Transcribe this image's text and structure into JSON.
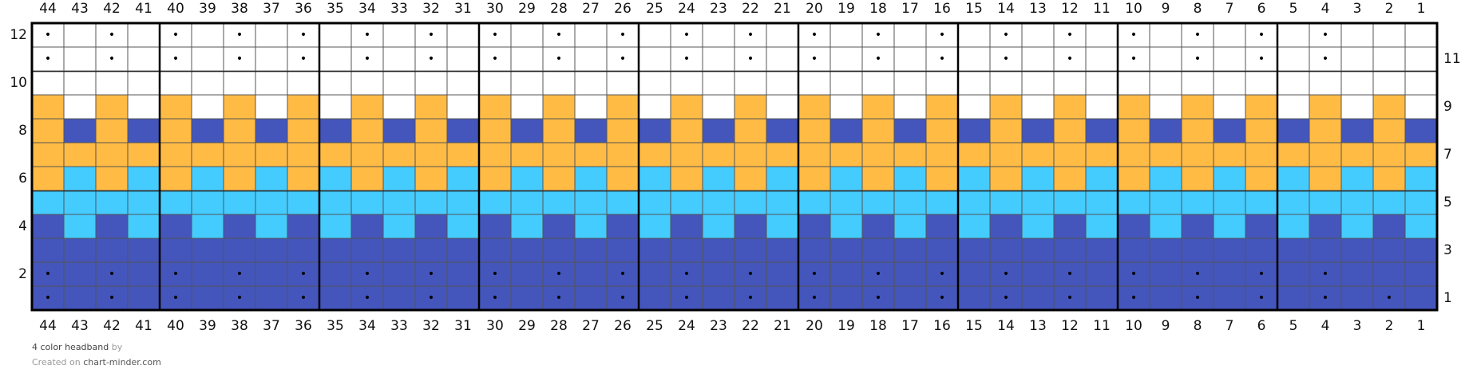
{
  "columns": [
    44,
    43,
    42,
    41,
    40,
    39,
    38,
    37,
    36,
    35,
    34,
    33,
    32,
    31,
    30,
    29,
    28,
    27,
    26,
    25,
    24,
    23,
    22,
    21,
    20,
    19,
    18,
    17,
    16,
    15,
    14,
    13,
    12,
    11,
    10,
    9,
    8,
    7,
    6,
    5,
    4,
    3,
    2,
    1
  ],
  "rows": [
    {
      "number": 1,
      "cells": [
        "#45b",
        "#45b",
        "#45b",
        "#45b",
        "#45b",
        "#45b",
        "#45b",
        "#45b",
        "#45b",
        "#45b",
        "#45b",
        "#45b",
        "#45b",
        "#45b",
        "#45b",
        "#45b",
        "#45b",
        "#45b",
        "#45b",
        "#45b",
        "#45b",
        "#45b",
        "#45b",
        "#45b",
        "#45b",
        "#45b",
        "#45b",
        "#45b",
        "#45b",
        "#45b",
        "#45b",
        "#45b",
        "#45b",
        "#45b",
        "#45b",
        "#45b",
        "#45b",
        "#45b",
        "#45b",
        "#45b",
        "#45b",
        "#45b",
        "#45b",
        "#45b"
      ],
      "marks": [
        "•",
        null,
        "•",
        null,
        "•",
        null,
        "•",
        null,
        "•",
        null,
        "•",
        null,
        "•",
        null,
        "•",
        null,
        "•",
        null,
        "•",
        null,
        "•",
        null,
        "•",
        null,
        "•",
        null,
        "•",
        null,
        "•",
        null,
        "•",
        null,
        "•",
        null,
        "•",
        null,
        "•",
        null,
        "•",
        null,
        "•",
        null,
        "•",
        null
      ]
    },
    {
      "number": 2,
      "cells": [
        "#45b",
        "#45b",
        "#45b",
        "#45b",
        "#45b",
        "#45b",
        "#45b",
        "#45b",
        "#45b",
        "#45b",
        "#45b",
        "#45b",
        "#45b",
        "#45b",
        "#45b",
        "#45b",
        "#45b",
        "#45b",
        "#45b",
        "#45b",
        "#45b",
        "#45b",
        "#45b",
        "#45b",
        "#45b",
        "#45b",
        "#45b",
        "#45b",
        "#45b",
        "#45b",
        "#45b",
        "#45b",
        "#45b",
        "#45b",
        "#45b",
        "#45b",
        "#45b",
        "#45b",
        "#45b",
        "#45b",
        "#45b",
        "#45b",
        "#45b",
        "#45b"
      ],
      "marks": [
        "•",
        null,
        "•",
        null,
        "•",
        null,
        "•",
        null,
        "•",
        null,
        "•",
        null,
        "•",
        null,
        "•",
        null,
        "•",
        null,
        "•",
        null,
        "•",
        null,
        "•",
        null,
        "•",
        null,
        "•",
        null,
        "•",
        null,
        "•",
        null,
        "•",
        null,
        "•",
        null,
        "•",
        null,
        "•",
        null,
        "•",
        null
      ]
    },
    {
      "number": 3,
      "cells": [
        "#45b",
        "#45b",
        "#45b",
        "#45b",
        "#45b",
        "#45b",
        "#45b",
        "#45b",
        "#45b",
        "#45b",
        "#45b",
        "#45b",
        "#45b",
        "#45b",
        "#45b",
        "#45b",
        "#45b",
        "#45b",
        "#45b",
        "#45b",
        "#45b",
        "#45b",
        "#45b",
        "#45b",
        "#45b",
        "#45b",
        "#45b",
        "#45b",
        "#45b",
        "#45b",
        "#45b",
        "#45b",
        "#45b",
        "#45b",
        "#45b",
        "#45b",
        "#45b",
        "#45b",
        "#45b",
        "#45b",
        "#45b",
        "#45b",
        "#45b",
        "#45b"
      ]
    },
    {
      "number": 4,
      "cells": [
        "#45b",
        "#4cf",
        "#45b",
        "#4cf",
        "#45b",
        "#4cf",
        "#45b",
        "#4cf",
        "#45b",
        "#4cf",
        "#45b",
        "#4cf",
        "#45b",
        "#4cf",
        "#45b",
        "#4cf",
        "#45b",
        "#4cf",
        "#45b",
        "#4cf",
        "#45b",
        "#4cf",
        "#45b",
        "#4cf",
        "#45b",
        "#4cf",
        "#45b",
        "#4cf",
        "#45b",
        "#4cf",
        "#45b",
        "#4cf",
        "#45b",
        "#4cf",
        "#45b",
        "#4cf",
        "#45b",
        "#4cf",
        "#45b",
        "#4cf",
        "#45b",
        "#4cf",
        "#45b",
        "#4cf"
      ]
    },
    {
      "number": 5,
      "cells": [
        "#4cf",
        "#4cf",
        "#4cf",
        "#4cf",
        "#4cf",
        "#4cf",
        "#4cf",
        "#4cf",
        "#4cf",
        "#4cf",
        "#4cf",
        "#4cf",
        "#4cf",
        "#4cf",
        "#4cf",
        "#4cf",
        "#4cf",
        "#4cf",
        "#4cf",
        "#4cf",
        "#4cf",
        "#4cf",
        "#4cf",
        "#4cf",
        "#4cf",
        "#4cf",
        "#4cf",
        "#4cf",
        "#4cf",
        "#4cf",
        "#4cf",
        "#4cf",
        "#4cf",
        "#4cf",
        "#4cf",
        "#4cf",
        "#4cf",
        "#4cf",
        "#4cf",
        "#4cf",
        "#4cf",
        "#4cf",
        "#4cf",
        "#4cf"
      ]
    },
    {
      "number": 6,
      "cells": [
        "#fb4",
        "#4cf",
        "#fb4",
        "#4cf",
        "#fb4",
        "#4cf",
        "#fb4",
        "#4cf",
        "#fb4",
        "#4cf",
        "#fb4",
        "#4cf",
        "#fb4",
        "#4cf",
        "#fb4",
        "#4cf",
        "#fb4",
        "#4cf",
        "#fb4",
        "#4cf",
        "#fb4",
        "#4cf",
        "#fb4",
        "#4cf",
        "#fb4",
        "#4cf",
        "#fb4",
        "#4cf",
        "#fb4",
        "#4cf",
        "#fb4",
        "#4cf",
        "#fb4",
        "#4cf",
        "#fb4",
        "#4cf",
        "#fb4",
        "#4cf",
        "#fb4",
        "#4cf",
        "#fb4",
        "#4cf",
        "#fb4",
        "#4cf"
      ]
    },
    {
      "number": 7,
      "cells": [
        "#fb4",
        "#fb4",
        "#fb4",
        "#fb4",
        "#fb4",
        "#fb4",
        "#fb4",
        "#fb4",
        "#fb4",
        "#fb4",
        "#fb4",
        "#fb4",
        "#fb4",
        "#fb4",
        "#fb4",
        "#fb4",
        "#fb4",
        "#fb4",
        "#fb4",
        "#fb4",
        "#fb4",
        "#fb4",
        "#fb4",
        "#fb4",
        "#fb4",
        "#fb4",
        "#fb4",
        "#fb4",
        "#fb4",
        "#fb4",
        "#fb4",
        "#fb4",
        "#fb4",
        "#fb4",
        "#fb4",
        "#fb4",
        "#fb4",
        "#fb4",
        "#fb4",
        "#fb4",
        "#fb4",
        "#fb4",
        "#fb4",
        "#fb4"
      ]
    },
    {
      "number": 8,
      "cells": [
        "#fb4",
        "#45b",
        "#fb4",
        "#45b",
        "#fb4",
        "#45b",
        "#fb4",
        "#45b",
        "#fb4",
        "#45b",
        "#fb4",
        "#45b",
        "#fb4",
        "#45b",
        "#fb4",
        "#45b",
        "#fb4",
        "#45b",
        "#fb4",
        "#45b",
        "#fb4",
        "#45b",
        "#fb4",
        "#45b",
        "#fb4",
        "#45b",
        "#fb4",
        "#45b",
        "#fb4",
        "#45b",
        "#fb4",
        "#45b",
        "#fb4",
        "#45b",
        "#fb4",
        "#45b",
        "#fb4",
        "#45b",
        "#fb4",
        "#45b",
        "#fb4",
        "#45b",
        "#fb4",
        "#45b"
      ]
    },
    {
      "number": 9,
      "cells": [
        "#fb4",
        "#fff",
        "#fb4",
        "#fff",
        "#fb4",
        "#fff",
        "#fb4",
        "#fff",
        "#fb4",
        "#fff",
        "#fb4",
        "#fff",
        "#fb4",
        "#fff",
        "#fb4",
        "#fff",
        "#fb4",
        "#fff",
        "#fb4",
        "#fff",
        "#fb4",
        "#fff",
        "#fb4",
        "#fff",
        "#fb4",
        "#fff",
        "#fb4",
        "#fff",
        "#fb4",
        "#fff",
        "#fb4",
        "#fff",
        "#fb4",
        "#fff",
        "#fb4",
        "#fff",
        "#fb4",
        "#fff",
        "#fb4",
        "#fff",
        "#fb4",
        "#fff",
        "#fb4",
        "#fff"
      ]
    },
    {
      "number": 10,
      "cells": [
        "#fff",
        "#fff",
        "#fff",
        "#fff",
        "#fff",
        "#fff",
        "#fff",
        "#fff",
        "#fff",
        "#fff",
        "#fff",
        "#fff",
        "#fff",
        "#fff",
        "#fff",
        "#fff",
        "#fff",
        "#fff",
        "#fff",
        "#fff",
        "#fff",
        "#fff",
        "#fff",
        "#fff",
        "#fff",
        "#fff",
        "#fff",
        "#fff",
        "#fff",
        "#fff",
        "#fff",
        "#fff",
        "#fff",
        "#fff",
        "#fff",
        "#fff",
        "#fff",
        "#fff",
        "#fff",
        "#fff",
        "#fff",
        "#fff",
        "#fff",
        "#fff"
      ]
    },
    {
      "number": 11,
      "cells": [
        "#fff",
        "#fff",
        "#fff",
        "#fff",
        "#fff",
        "#fff",
        "#fff",
        "#fff",
        "#fff",
        "#fff",
        "#fff",
        "#fff",
        "#fff",
        "#fff",
        "#fff",
        "#fff",
        "#fff",
        "#fff",
        "#fff",
        "#fff",
        "#fff",
        "#fff",
        "#fff",
        "#fff",
        "#fff",
        "#fff",
        "#fff",
        "#fff",
        "#fff",
        "#fff",
        "#fff",
        "#fff",
        "#fff",
        "#fff",
        "#fff",
        "#fff",
        "#fff",
        "#fff",
        "#fff",
        "#fff",
        "#fff",
        "#fff",
        "#fff",
        "#fff"
      ],
      "marks": [
        "•",
        null,
        "•",
        null,
        "•",
        null,
        "•",
        null,
        "•",
        null,
        "•",
        null,
        "•",
        null,
        "•",
        null,
        "•",
        null,
        "•",
        null,
        "•",
        null,
        "•",
        null,
        "•",
        null,
        "•",
        null,
        "•",
        null,
        "•",
        null,
        "•",
        null,
        "•",
        null,
        "•",
        null,
        "•",
        null,
        "•",
        null
      ]
    },
    {
      "number": 12,
      "cells": [
        "#fff",
        "#fff",
        "#fff",
        "#fff",
        "#fff",
        "#fff",
        "#fff",
        "#fff",
        "#fff",
        "#fff",
        "#fff",
        "#fff",
        "#fff",
        "#fff",
        "#fff",
        "#fff",
        "#fff",
        "#fff",
        "#fff",
        "#fff",
        "#fff",
        "#fff",
        "#fff",
        "#fff",
        "#fff",
        "#fff",
        "#fff",
        "#fff",
        "#fff",
        "#fff",
        "#fff",
        "#fff",
        "#fff",
        "#fff",
        "#fff",
        "#fff",
        "#fff",
        "#fff",
        "#fff",
        "#fff",
        "#fff",
        "#fff",
        "#fff",
        "#fff"
      ],
      "marks": [
        "•",
        null,
        "•",
        null,
        "•",
        null,
        "•",
        null,
        "•",
        null,
        "•",
        null,
        "•",
        null,
        "•",
        null,
        "•",
        null,
        "•",
        null,
        "•",
        null,
        "•",
        null,
        "•",
        null,
        "•",
        null,
        "•",
        null,
        "•",
        null,
        "•",
        null,
        "•",
        null,
        "•",
        null,
        "•",
        null,
        "•",
        null
      ]
    }
  ],
  "footer": {
    "title": "4 color headband",
    "by": "by",
    "created": "Created on",
    "site": "chart-minder.com"
  }
}
